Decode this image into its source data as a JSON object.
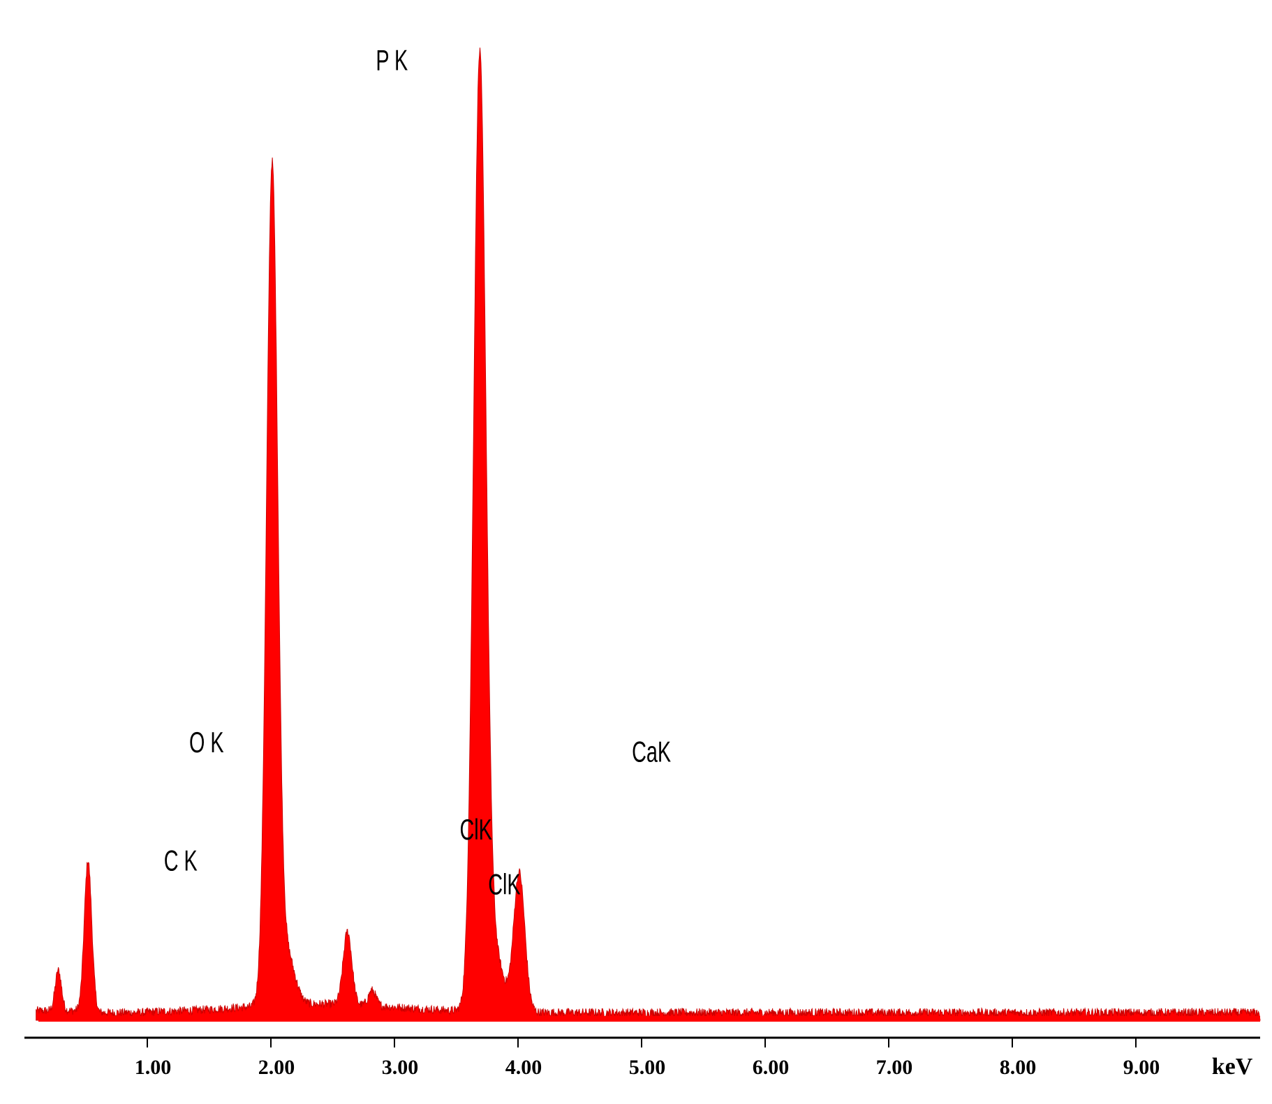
{
  "chart_data": {
    "type": "area",
    "title": "",
    "xlabel": "keV",
    "ylabel": "",
    "xlim": [
      0.1,
      10.0
    ],
    "x_ticks": [
      "1.00",
      "2.00",
      "3.00",
      "4.00",
      "5.00",
      "6.00",
      "7.00",
      "8.00",
      "9.00"
    ],
    "x_tick_values": [
      1,
      2,
      3,
      4,
      5,
      6,
      7,
      8,
      9
    ],
    "ylim": [
      0,
      100
    ],
    "grid": false,
    "legend": "none",
    "color": "#ff0000",
    "peaks": [
      {
        "label": "C K",
        "energy": 0.28,
        "intensity": 4.2,
        "width": 0.025
      },
      {
        "label": "O K",
        "energy": 0.52,
        "intensity": 15.6,
        "width": 0.03
      },
      {
        "label": "P K",
        "energy": 2.01,
        "intensity": 87.0,
        "width": 0.045
      },
      {
        "label": "ClK",
        "energy": 2.62,
        "intensity": 7.6,
        "width": 0.035
      },
      {
        "label": "ClK",
        "energy": 2.82,
        "intensity": 1.6,
        "width": 0.03
      },
      {
        "label": "CaK",
        "energy": 3.69,
        "intensity": 98.5,
        "width": 0.05
      },
      {
        "label": "CaK",
        "energy": 4.01,
        "intensity": 14.5,
        "width": 0.045
      }
    ],
    "peak_label_energies": [
      0.24,
      0.45,
      1.95,
      2.63,
      2.86,
      3.72,
      4.05
    ],
    "peak_label_heights": [
      7.0,
      19.3,
      90.3,
      10.2,
      4.5,
      101.5,
      18.3
    ]
  }
}
